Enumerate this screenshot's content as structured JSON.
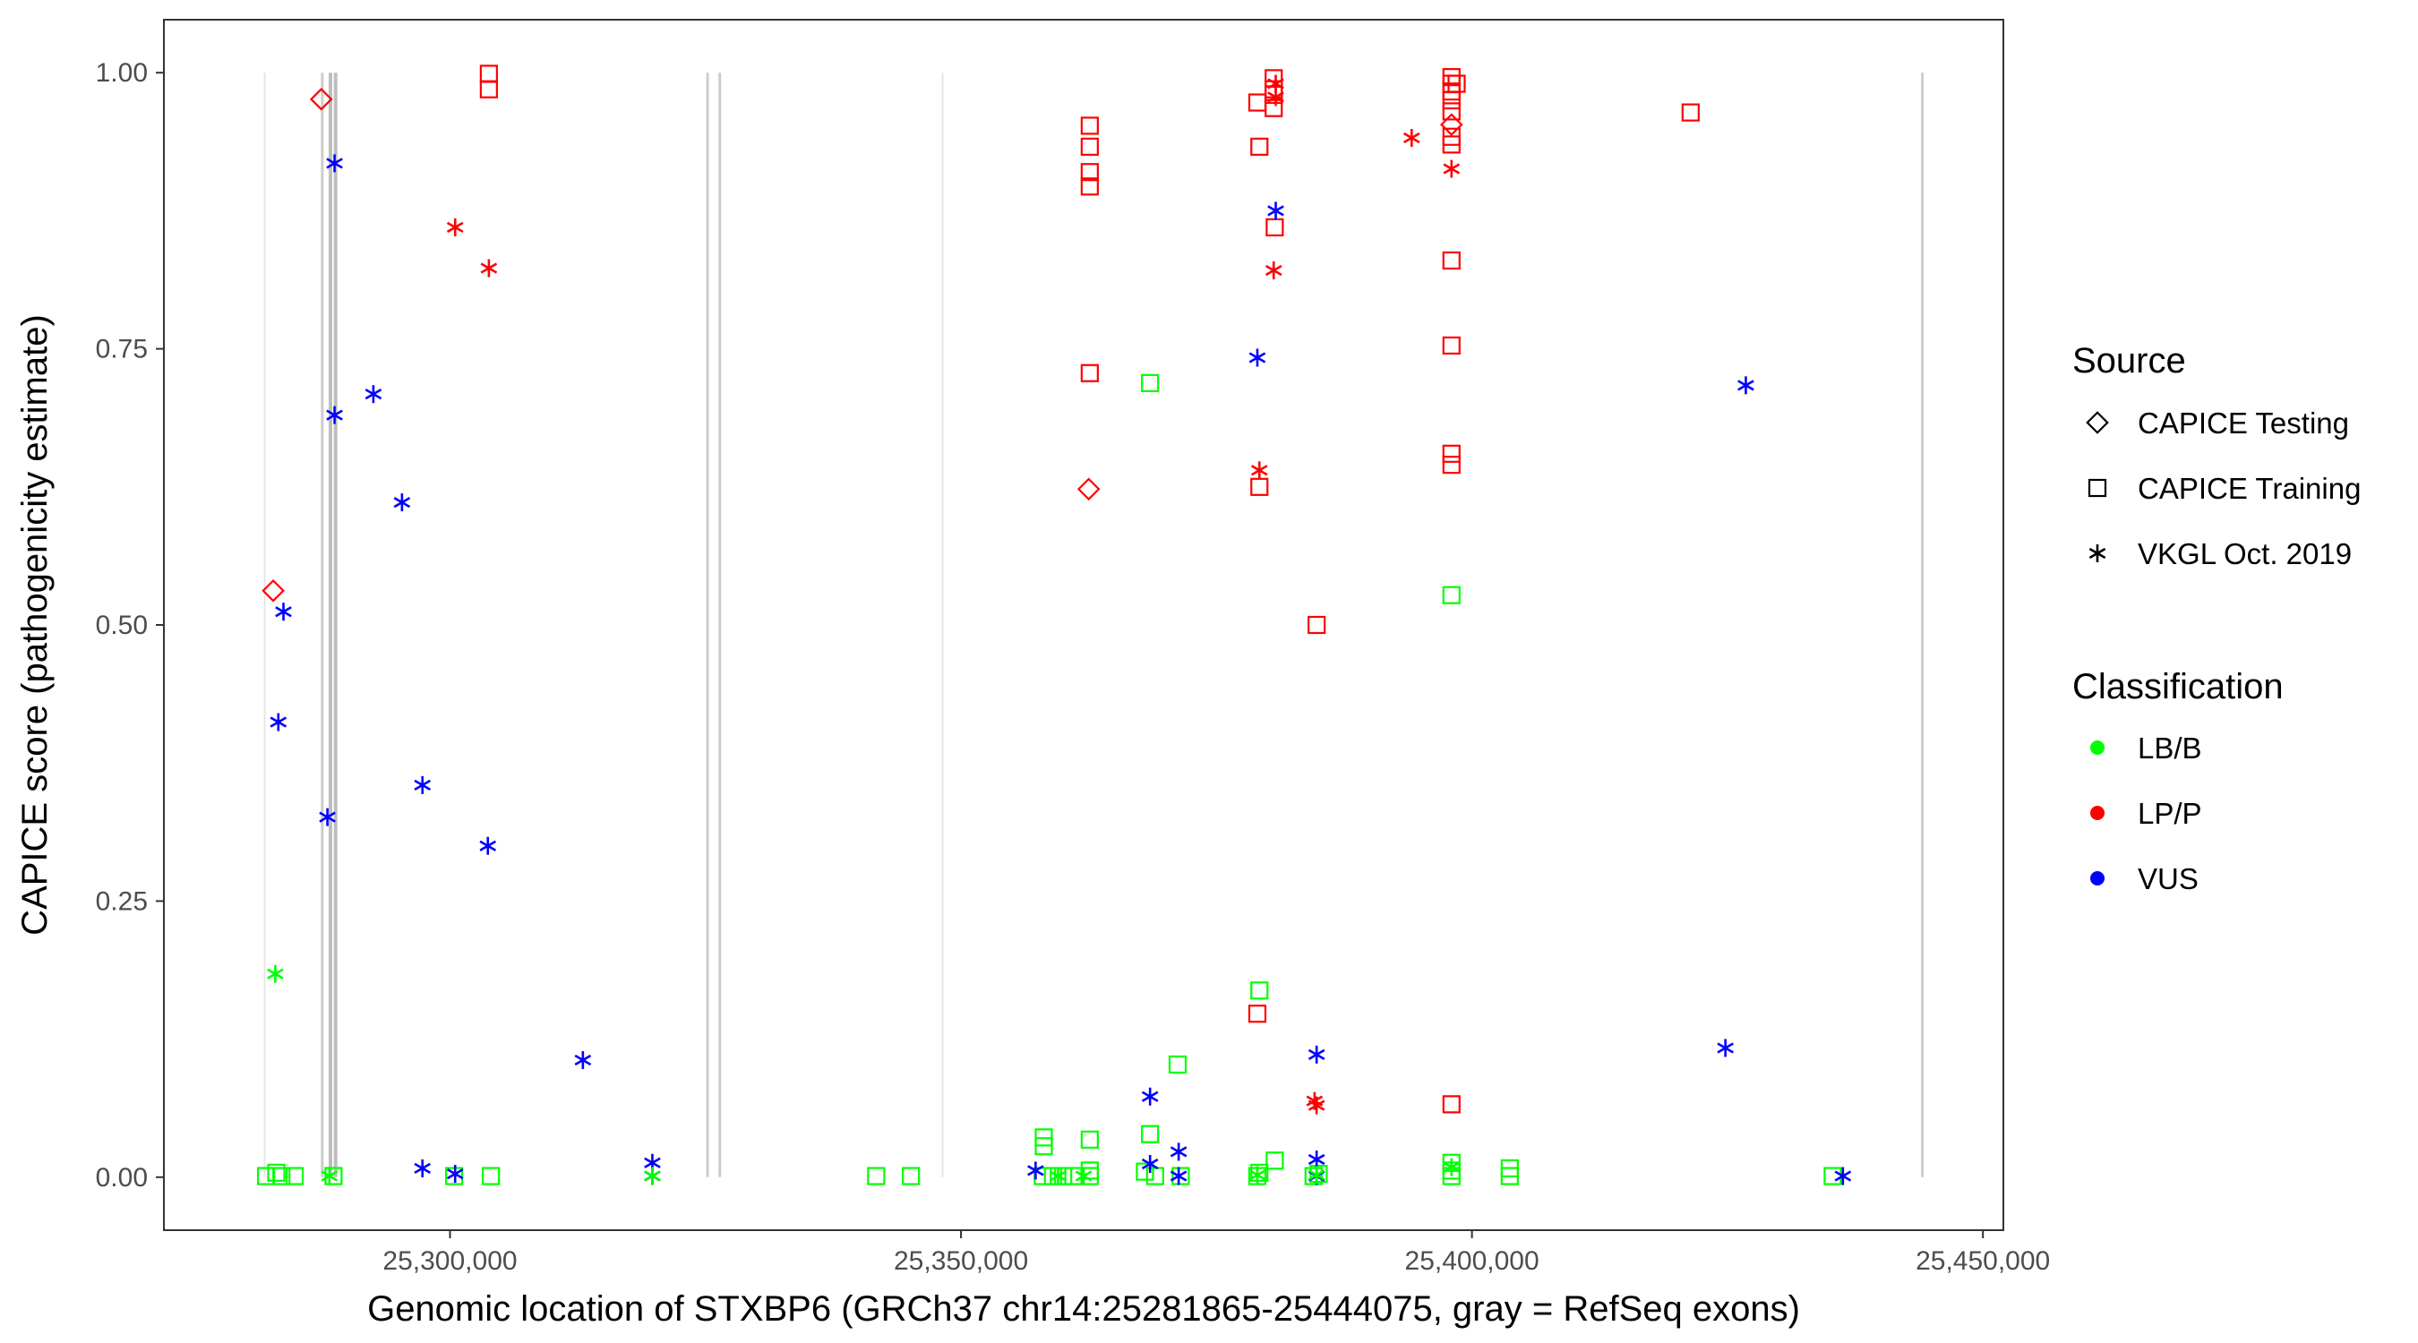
{
  "chart_data": {
    "type": "scatter",
    "title": "",
    "xlabel": "Genomic location of STXBP6 (GRCh37 chr14:25281865-25444075, gray = RefSeq exons)",
    "ylabel": "CAPICE score (pathogenicity estimate)",
    "xlim": [
      25272000,
      25452000
    ],
    "ylim": [
      -0.048,
      1.048
    ],
    "x_ticks": [
      25300000,
      25350000,
      25400000,
      25450000
    ],
    "x_tick_labels": [
      "25,300,000",
      "25,350,000",
      "25,400,000",
      "25,450,000"
    ],
    "y_ticks": [
      0,
      0.25,
      0.5,
      0.75,
      1
    ],
    "y_tick_labels": [
      "0.00",
      "0.25",
      "0.50",
      "0.75",
      "1.00"
    ],
    "grid": false,
    "exons": [
      {
        "x": 25281865,
        "weight": "thin"
      },
      {
        "x": 25287500,
        "weight": "medium"
      },
      {
        "x": 25288300,
        "weight": "thick"
      },
      {
        "x": 25288800,
        "weight": "thick"
      },
      {
        "x": 25325200,
        "weight": "medium"
      },
      {
        "x": 25326400,
        "weight": "medium"
      },
      {
        "x": 25348200,
        "weight": "thin"
      },
      {
        "x": 25444075,
        "weight": "medium"
      }
    ],
    "legend": {
      "placement": "right",
      "source_title": "Source",
      "classification_title": "Classification",
      "source_entries": [
        {
          "label": "CAPICE Testing",
          "shape": "diamond"
        },
        {
          "label": "CAPICE Training",
          "shape": "square"
        },
        {
          "label": "VKGL Oct. 2019",
          "shape": "asterisk"
        }
      ],
      "classification_entries": [
        {
          "label": "LB/B",
          "color": "#00ff00"
        },
        {
          "label": "LP/P",
          "color": "#ff0000"
        },
        {
          "label": "VUS",
          "color": "#0000ff"
        }
      ]
    },
    "colors": {
      "LB/B": "#00ff00",
      "LP/P": "#ff0000",
      "VUS": "#0000ff"
    },
    "series": [
      {
        "name": "CAPICE Testing",
        "shape": "diamond",
        "points": [
          {
            "x": 25287400,
            "y": 0.976,
            "class": "LP/P"
          },
          {
            "x": 25282700,
            "y": 0.531,
            "class": "LP/P"
          },
          {
            "x": 25362500,
            "y": 0.623,
            "class": "LP/P"
          },
          {
            "x": 25398000,
            "y": 0.953,
            "class": "LP/P"
          }
        ]
      },
      {
        "name": "CAPICE Training",
        "shape": "square",
        "points": [
          {
            "x": 25303800,
            "y": 0.999,
            "class": "LP/P"
          },
          {
            "x": 25303800,
            "y": 0.985,
            "class": "LP/P"
          },
          {
            "x": 25362600,
            "y": 0.952,
            "class": "LP/P"
          },
          {
            "x": 25362600,
            "y": 0.933,
            "class": "LP/P"
          },
          {
            "x": 25362600,
            "y": 0.91,
            "class": "LP/P"
          },
          {
            "x": 25362600,
            "y": 0.897,
            "class": "LP/P"
          },
          {
            "x": 25362600,
            "y": 0.728,
            "class": "LP/P"
          },
          {
            "x": 25379000,
            "y": 0.973,
            "class": "LP/P"
          },
          {
            "x": 25379200,
            "y": 0.933,
            "class": "LP/P"
          },
          {
            "x": 25379200,
            "y": 0.625,
            "class": "LP/P"
          },
          {
            "x": 25379000,
            "y": 0.148,
            "class": "LP/P"
          },
          {
            "x": 25380600,
            "y": 0.995,
            "class": "LP/P"
          },
          {
            "x": 25380600,
            "y": 0.985,
            "class": "LP/P"
          },
          {
            "x": 25380600,
            "y": 0.98,
            "class": "LP/P"
          },
          {
            "x": 25380600,
            "y": 0.968,
            "class": "LP/P"
          },
          {
            "x": 25380700,
            "y": 0.86,
            "class": "LP/P"
          },
          {
            "x": 25384800,
            "y": 0.5,
            "class": "LP/P"
          },
          {
            "x": 25398000,
            "y": 0.996,
            "class": "LP/P"
          },
          {
            "x": 25398000,
            "y": 0.99,
            "class": "LP/P"
          },
          {
            "x": 25398500,
            "y": 0.99,
            "class": "LP/P"
          },
          {
            "x": 25398000,
            "y": 0.983,
            "class": "LP/P"
          },
          {
            "x": 25398000,
            "y": 0.975,
            "class": "LP/P"
          },
          {
            "x": 25398000,
            "y": 0.965,
            "class": "LP/P"
          },
          {
            "x": 25398000,
            "y": 0.942,
            "class": "LP/P"
          },
          {
            "x": 25398000,
            "y": 0.935,
            "class": "LP/P"
          },
          {
            "x": 25398000,
            "y": 0.83,
            "class": "LP/P"
          },
          {
            "x": 25398000,
            "y": 0.753,
            "class": "LP/P"
          },
          {
            "x": 25398000,
            "y": 0.655,
            "class": "LP/P"
          },
          {
            "x": 25398000,
            "y": 0.645,
            "class": "LP/P"
          },
          {
            "x": 25398000,
            "y": 0.066,
            "class": "LP/P"
          },
          {
            "x": 25421400,
            "y": 0.964,
            "class": "LP/P"
          },
          {
            "x": 25368500,
            "y": 0.719,
            "class": "LB/B"
          },
          {
            "x": 25398000,
            "y": 0.527,
            "class": "LB/B"
          },
          {
            "x": 25379200,
            "y": 0.169,
            "class": "LB/B"
          },
          {
            "x": 25371200,
            "y": 0.102,
            "class": "LB/B"
          },
          {
            "x": 25368500,
            "y": 0.039,
            "class": "LB/B"
          },
          {
            "x": 25358100,
            "y": 0.036,
            "class": "LB/B"
          },
          {
            "x": 25358100,
            "y": 0.028,
            "class": "LB/B"
          },
          {
            "x": 25362600,
            "y": 0.034,
            "class": "LB/B"
          },
          {
            "x": 25380700,
            "y": 0.015,
            "class": "LB/B"
          },
          {
            "x": 25398000,
            "y": 0.013,
            "class": "LB/B"
          },
          {
            "x": 25398000,
            "y": 0.006,
            "class": "LB/B"
          },
          {
            "x": 25403700,
            "y": 0.008,
            "class": "LB/B"
          },
          {
            "x": 25362600,
            "y": 0.006,
            "class": "LB/B"
          },
          {
            "x": 25368000,
            "y": 0.005,
            "class": "LB/B"
          },
          {
            "x": 25282000,
            "y": 0.001,
            "class": "LB/B"
          },
          {
            "x": 25283500,
            "y": 0.001,
            "class": "LB/B"
          },
          {
            "x": 25283000,
            "y": 0.004,
            "class": "LB/B"
          },
          {
            "x": 25284800,
            "y": 0.001,
            "class": "LB/B"
          },
          {
            "x": 25288600,
            "y": 0.001,
            "class": "LB/B"
          },
          {
            "x": 25300400,
            "y": 0.001,
            "class": "LB/B"
          },
          {
            "x": 25304000,
            "y": 0.001,
            "class": "LB/B"
          },
          {
            "x": 25341700,
            "y": 0.001,
            "class": "LB/B"
          },
          {
            "x": 25345100,
            "y": 0.001,
            "class": "LB/B"
          },
          {
            "x": 25358000,
            "y": 0.001,
            "class": "LB/B"
          },
          {
            "x": 25359000,
            "y": 0.001,
            "class": "LB/B"
          },
          {
            "x": 25360000,
            "y": 0.001,
            "class": "LB/B"
          },
          {
            "x": 25361000,
            "y": 0.001,
            "class": "LB/B"
          },
          {
            "x": 25362600,
            "y": 0.001,
            "class": "LB/B"
          },
          {
            "x": 25369000,
            "y": 0.001,
            "class": "LB/B"
          },
          {
            "x": 25371500,
            "y": 0.001,
            "class": "LB/B"
          },
          {
            "x": 25379000,
            "y": 0.001,
            "class": "LB/B"
          },
          {
            "x": 25379200,
            "y": 0.004,
            "class": "LB/B"
          },
          {
            "x": 25384500,
            "y": 0.001,
            "class": "LB/B"
          },
          {
            "x": 25385000,
            "y": 0.003,
            "class": "LB/B"
          },
          {
            "x": 25398000,
            "y": 0.001,
            "class": "LB/B"
          },
          {
            "x": 25403700,
            "y": 0.001,
            "class": "LB/B"
          },
          {
            "x": 25435300,
            "y": 0.001,
            "class": "LB/B"
          }
        ]
      },
      {
        "name": "VKGL Oct. 2019",
        "shape": "asterisk",
        "points": [
          {
            "x": 25288700,
            "y": 0.918,
            "class": "VUS"
          },
          {
            "x": 25288700,
            "y": 0.69,
            "class": "VUS"
          },
          {
            "x": 25292500,
            "y": 0.709,
            "class": "VUS"
          },
          {
            "x": 25295300,
            "y": 0.611,
            "class": "VUS"
          },
          {
            "x": 25283700,
            "y": 0.512,
            "class": "VUS"
          },
          {
            "x": 25283200,
            "y": 0.412,
            "class": "VUS"
          },
          {
            "x": 25297300,
            "y": 0.355,
            "class": "VUS"
          },
          {
            "x": 25288000,
            "y": 0.326,
            "class": "VUS"
          },
          {
            "x": 25303700,
            "y": 0.3,
            "class": "VUS"
          },
          {
            "x": 25313000,
            "y": 0.106,
            "class": "VUS"
          },
          {
            "x": 25297300,
            "y": 0.008,
            "class": "VUS"
          },
          {
            "x": 25300500,
            "y": 0.003,
            "class": "VUS"
          },
          {
            "x": 25319800,
            "y": 0.013,
            "class": "VUS"
          },
          {
            "x": 25319800,
            "y": 0.001,
            "class": "VUS"
          },
          {
            "x": 25357300,
            "y": 0.006,
            "class": "VUS"
          },
          {
            "x": 25368500,
            "y": 0.073,
            "class": "VUS"
          },
          {
            "x": 25368500,
            "y": 0.012,
            "class": "VUS"
          },
          {
            "x": 25371300,
            "y": 0.023,
            "class": "VUS"
          },
          {
            "x": 25371300,
            "y": 0.001,
            "class": "VUS"
          },
          {
            "x": 25379000,
            "y": 0.742,
            "class": "VUS"
          },
          {
            "x": 25380800,
            "y": 0.875,
            "class": "VUS"
          },
          {
            "x": 25384800,
            "y": 0.111,
            "class": "VUS"
          },
          {
            "x": 25384800,
            "y": 0.016,
            "class": "VUS"
          },
          {
            "x": 25384800,
            "y": 0.001,
            "class": "VUS"
          },
          {
            "x": 25424800,
            "y": 0.117,
            "class": "VUS"
          },
          {
            "x": 25426800,
            "y": 0.717,
            "class": "VUS"
          },
          {
            "x": 25436300,
            "y": 0.001,
            "class": "VUS"
          },
          {
            "x": 25300500,
            "y": 0.86,
            "class": "LP/P"
          },
          {
            "x": 25303800,
            "y": 0.823,
            "class": "LP/P"
          },
          {
            "x": 25379200,
            "y": 0.64,
            "class": "LP/P"
          },
          {
            "x": 25380600,
            "y": 0.821,
            "class": "LP/P"
          },
          {
            "x": 25380800,
            "y": 0.99,
            "class": "LP/P"
          },
          {
            "x": 25380800,
            "y": 0.978,
            "class": "LP/P"
          },
          {
            "x": 25394100,
            "y": 0.941,
            "class": "LP/P"
          },
          {
            "x": 25398000,
            "y": 0.913,
            "class": "LP/P"
          },
          {
            "x": 25384600,
            "y": 0.069,
            "class": "LP/P"
          },
          {
            "x": 25384800,
            "y": 0.065,
            "class": "LP/P"
          },
          {
            "x": 25282900,
            "y": 0.184,
            "class": "LB/B"
          },
          {
            "x": 25288200,
            "y": 0.001,
            "class": "LB/B"
          },
          {
            "x": 25319800,
            "y": 0.001,
            "class": "LB/B"
          },
          {
            "x": 25359500,
            "y": 0.001,
            "class": "LB/B"
          },
          {
            "x": 25362000,
            "y": 0.001,
            "class": "LB/B"
          },
          {
            "x": 25379000,
            "y": 0.002,
            "class": "LB/B"
          },
          {
            "x": 25384800,
            "y": 0.002,
            "class": "LB/B"
          },
          {
            "x": 25398000,
            "y": 0.009,
            "class": "LB/B"
          }
        ]
      }
    ]
  }
}
